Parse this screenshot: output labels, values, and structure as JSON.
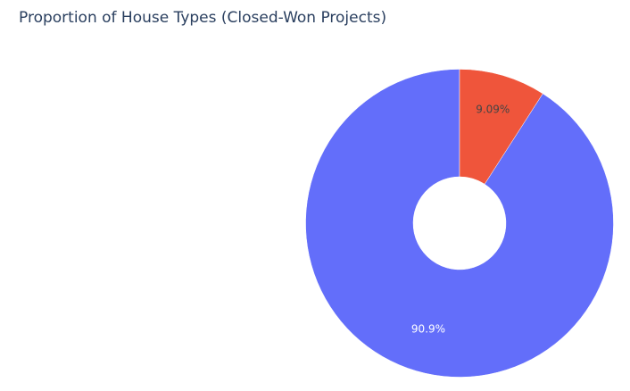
{
  "chart_data": {
    "type": "pie",
    "title": "Proportion of House Types (Closed-Won Projects)",
    "hole": true,
    "slices": [
      {
        "label": "90.9%",
        "value": 90.9,
        "color": "#636efa",
        "text_color": "#ffffff"
      },
      {
        "label": "9.09%",
        "value": 9.09,
        "color": "#ef553b",
        "text_color": "#444444"
      }
    ]
  }
}
